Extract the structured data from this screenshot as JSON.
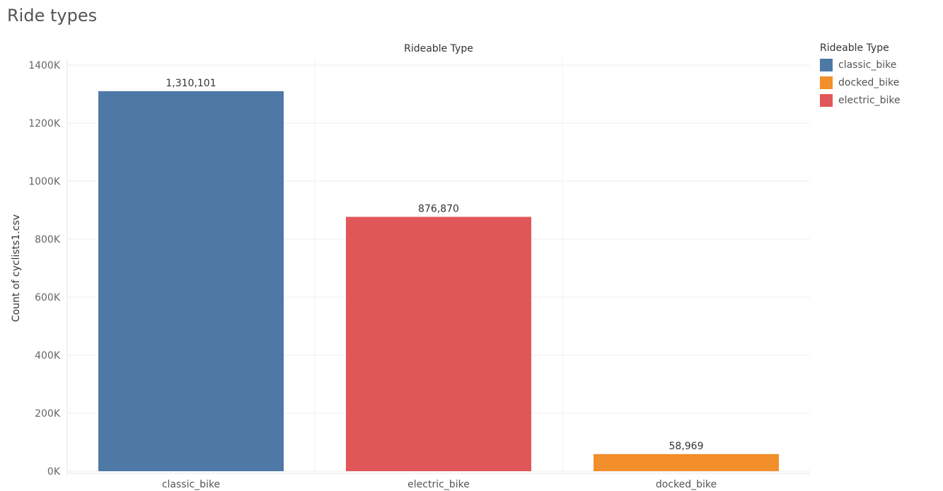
{
  "sheet": {
    "title": "Ride types"
  },
  "legend": {
    "title": "Rideable Type",
    "items": [
      {
        "label": "classic_bike",
        "color": "#4e79a7"
      },
      {
        "label": "docked_bike",
        "color": "#f28e2b"
      },
      {
        "label": "electric_bike",
        "color": "#e15759"
      }
    ]
  },
  "chart_data": {
    "type": "bar",
    "title": "Rideable Type",
    "xlabel": "",
    "ylabel": "Count of cyclists1.csv",
    "categories": [
      "classic_bike",
      "electric_bike",
      "docked_bike"
    ],
    "values": [
      1310101,
      876870,
      58969
    ],
    "data_labels": [
      "1,310,101",
      "876,870",
      "58,969"
    ],
    "colors": [
      "#4e79a7",
      "#e15759",
      "#f28e2b"
    ],
    "ylim": [
      0,
      1400000
    ],
    "yticks": [
      0,
      200000,
      400000,
      600000,
      800000,
      1000000,
      1200000,
      1400000
    ],
    "ytick_labels": [
      "0K",
      "200K",
      "400K",
      "600K",
      "800K",
      "1000K",
      "1200K",
      "1400K"
    ],
    "grid": true
  }
}
